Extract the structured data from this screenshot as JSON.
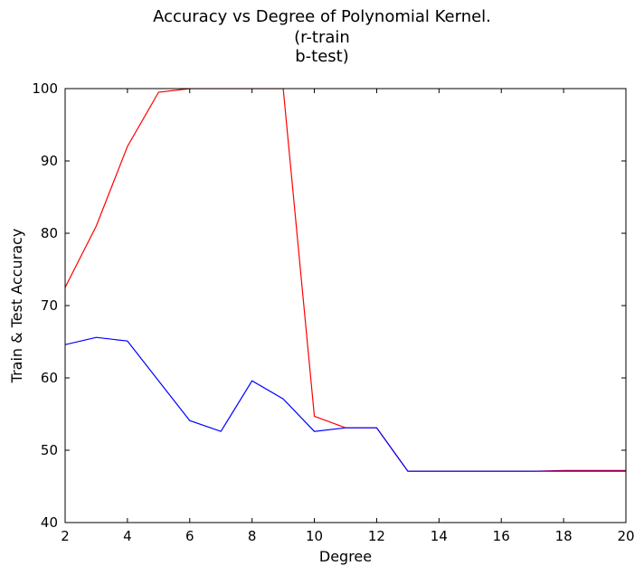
{
  "chart_data": {
    "type": "line",
    "title_lines": [
      "Accuracy vs Degree of Polynomial Kernel.",
      "(r-train",
      "b-test)"
    ],
    "xlabel": "Degree",
    "ylabel": "Train & Test Accuracy",
    "xlim": [
      2,
      20
    ],
    "ylim": [
      40,
      100
    ],
    "xticks": [
      2,
      4,
      6,
      8,
      10,
      12,
      14,
      16,
      18,
      20
    ],
    "yticks": [
      40,
      50,
      60,
      70,
      80,
      90,
      100
    ],
    "grid": false,
    "legend": "none",
    "x": [
      2,
      3,
      4,
      5,
      6,
      7,
      8,
      9,
      10,
      11,
      12,
      13,
      14,
      15,
      16,
      17,
      18,
      19,
      20
    ],
    "series": [
      {
        "color": "#ff0000",
        "values": [
          72.5,
          81.0,
          92.0,
          99.5,
          100,
          100,
          100,
          100,
          54.7,
          53.1,
          53.1,
          47.1,
          47.1,
          47.1,
          47.1,
          47.1,
          47.2,
          47.2,
          47.2
        ]
      },
      {
        "color": "#0000ff",
        "values": [
          64.6,
          65.6,
          65.1,
          59.6,
          54.1,
          52.6,
          59.6,
          57.1,
          52.6,
          53.1,
          53.1,
          47.1,
          47.1,
          47.1,
          47.1,
          47.1,
          47.1,
          47.1,
          47.1
        ]
      }
    ]
  }
}
